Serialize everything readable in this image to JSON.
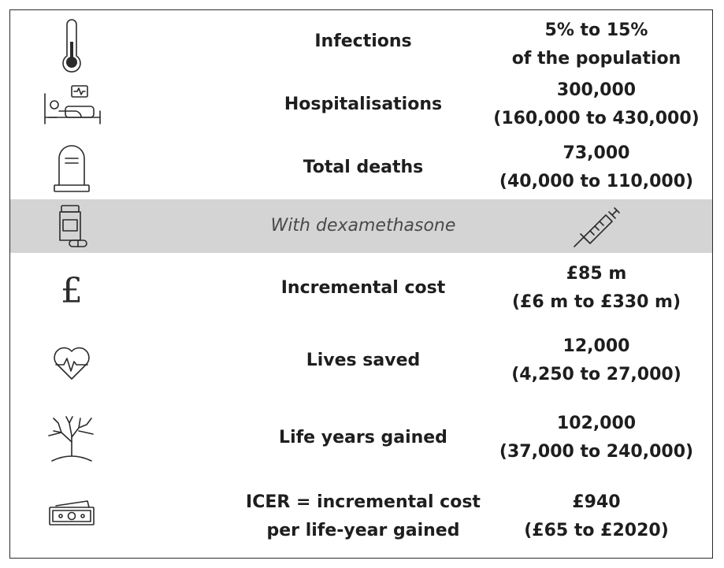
{
  "rows": [
    {
      "icon": "thermometer-icon",
      "label_lines": [
        "Infections"
      ],
      "value_lines": [
        "5% to 15%",
        "of the population"
      ]
    },
    {
      "icon": "hospital-bed-icon",
      "label_lines": [
        "Hospitalisations"
      ],
      "value_lines": [
        "300,000",
        "(160,000 to 430,000)"
      ]
    },
    {
      "icon": "gravestone-icon",
      "label_lines": [
        "Total deaths"
      ],
      "value_lines": [
        "73,000",
        "(40,000 to 110,000)"
      ]
    },
    {
      "icon": "medicine-bottle-icon",
      "label_lines": [
        "With dexamethasone"
      ],
      "value_icon": "syringe-icon",
      "highlighted": true
    },
    {
      "icon": "pound-sign-icon",
      "label_lines": [
        "Incremental cost"
      ],
      "value_lines": [
        "£85 m",
        "(£6 m to £330 m)"
      ]
    },
    {
      "icon": "heart-pulse-icon",
      "label_lines": [
        "Lives saved"
      ],
      "value_lines": [
        "12,000",
        "(4,250 to 27,000)"
      ]
    },
    {
      "icon": "tree-icon",
      "label_lines": [
        "Life years gained"
      ],
      "value_lines": [
        "102,000",
        "(37,000 to 240,000)"
      ]
    },
    {
      "icon": "banknotes-icon",
      "label_lines": [
        "ICER = incremental cost",
        "per life-year gained"
      ],
      "value_lines": [
        "£940",
        "(£65 to £2020)"
      ]
    }
  ],
  "colors": {
    "highlight_row": "#d4d4d4",
    "text": "#1e1e1e",
    "italic_text": "#4a4a4a",
    "border": "#2a2a2a"
  }
}
